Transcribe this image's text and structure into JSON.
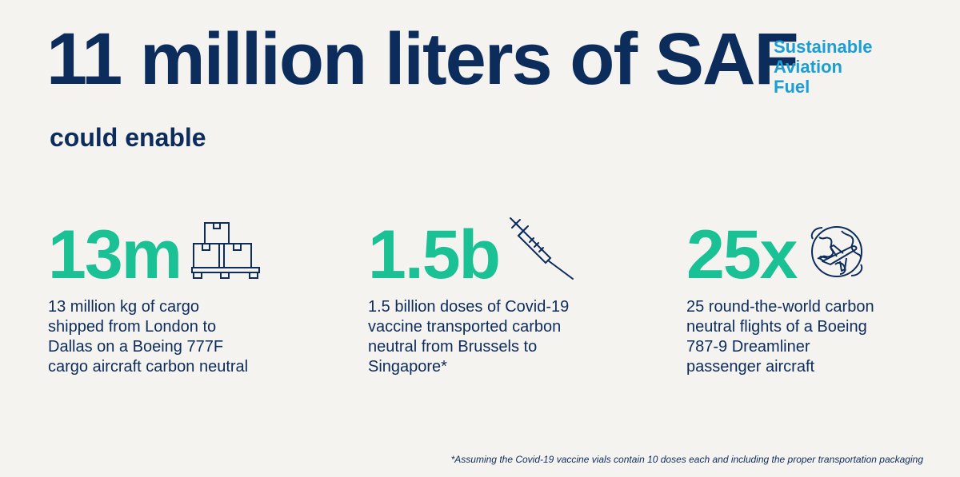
{
  "headline": "11 million liters of SAF",
  "saf_definition": [
    "Sustainable",
    "Aviation",
    "Fuel"
  ],
  "subhead": "could enable",
  "stats": [
    {
      "value": "13m",
      "icon": "cargo-boxes-icon",
      "description": [
        "13 million kg of cargo",
        "shipped from London to",
        "Dallas on a Boeing 777F",
        "cargo aircraft carbon neutral"
      ]
    },
    {
      "value": "1.5b",
      "icon": "syringe-icon",
      "description": [
        "1.5 billion doses of Covid-19",
        "vaccine transported carbon",
        "neutral from Brussels to",
        "Singapore*"
      ]
    },
    {
      "value": "25x",
      "icon": "globe-plane-icon",
      "description": [
        "25 round-the-world carbon",
        "neutral flights of a Boeing",
        "787-9 Dreamliner",
        "passenger aircraft"
      ]
    }
  ],
  "footnote": "*Assuming the Covid-19 vaccine vials contain 10 doses each and including the proper transportation packaging",
  "colors": {
    "background": "#f5f3ef",
    "navy": "#0c2c5c",
    "accent_blue": "#1a9ed4",
    "accent_green": "#19c195"
  }
}
